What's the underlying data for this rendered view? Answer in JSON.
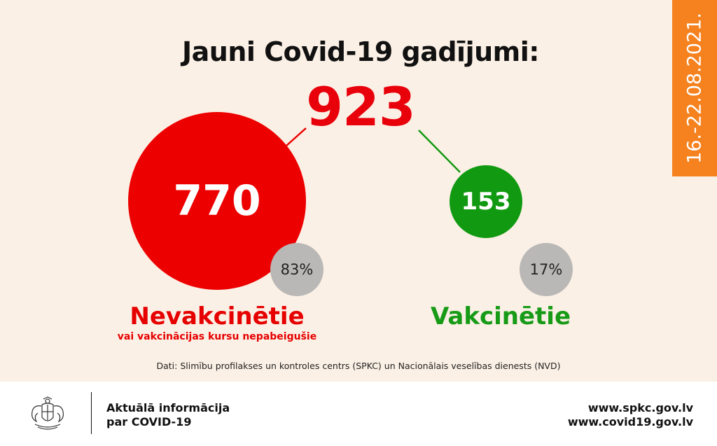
{
  "header": {
    "title": "Jauni Covid-19 gadījumi:",
    "total": "923",
    "date_range": "16.-22.08.2021."
  },
  "groups": {
    "unvaccinated": {
      "count": "770",
      "percent": "83%",
      "label": "Nevakcinētie",
      "sublabel": "vai vakcinācijas kursu nepabeigušie"
    },
    "vaccinated": {
      "count": "153",
      "percent": "17%",
      "label": "Vakcinētie"
    }
  },
  "source": "Dati: Slimību profilakses un kontroles centrs (SPKC) un Nacionālais veselības dienests (NVD)",
  "footer": {
    "info_line1": "Aktuālā informācija",
    "info_line2": "par COVID-19",
    "link1": "www.spkc.gov.lv",
    "link2": "www.covid19.gov.lv"
  },
  "colors": {
    "background": "#fbf0e5",
    "red": "#ed0000",
    "green": "#119a11",
    "orange": "#f5821f",
    "grey": "#b9b8b7"
  },
  "icons": {
    "emblem": "latvia-coat-of-arms-icon"
  }
}
